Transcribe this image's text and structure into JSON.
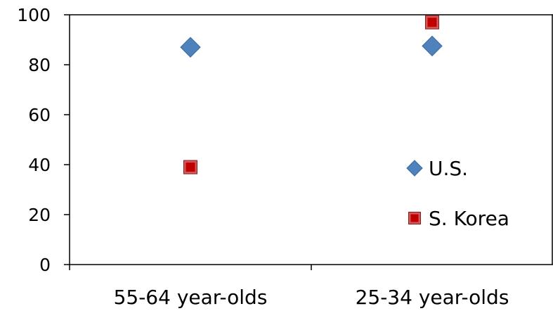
{
  "chart_data": {
    "type": "scatter",
    "categories": [
      "55-64 year-olds",
      "25-34 year-olds"
    ],
    "series": [
      {
        "name": "U.S.",
        "values": [
          87,
          87.5
        ],
        "color": "#4F81BD",
        "marker": "diamond"
      },
      {
        "name": "S. Korea",
        "values": [
          39,
          97
        ],
        "color": "#C00000",
        "marker": "square"
      }
    ],
    "yticks": [
      "0",
      "20",
      "40",
      "60",
      "80",
      "100"
    ],
    "ylim": [
      0,
      100
    ],
    "grid": false,
    "legend_position": "right"
  }
}
